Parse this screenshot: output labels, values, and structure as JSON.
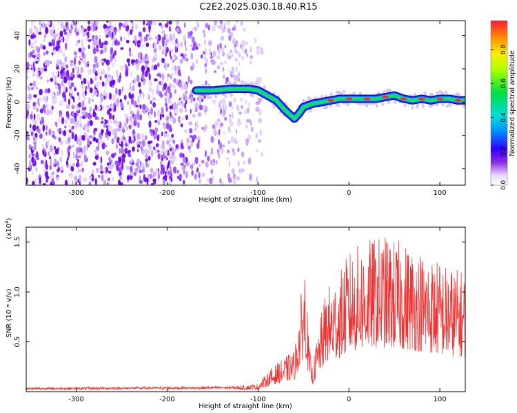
{
  "title": "C2E2.2025.030.18.40.R15",
  "chart_data": [
    {
      "type": "heatmap",
      "xlabel": "Height of straight line (km)",
      "ylabel": "Frequency (Hz)",
      "xlim": [
        -355,
        128
      ],
      "ylim": [
        -50,
        49
      ],
      "x_ticks": [
        -300,
        -200,
        -100,
        0,
        100
      ],
      "x_tick_labels": [
        "-300",
        "-200",
        "-100",
        "0",
        "100"
      ],
      "y_ticks": [
        -40,
        -20,
        0,
        20,
        40
      ],
      "y_tick_labels": [
        "-40",
        "-20",
        "0",
        "20",
        "40"
      ],
      "colorbar": {
        "label": "Normalized spectral amplitude",
        "range": [
          0,
          0.97
        ],
        "ticks": [
          0.0,
          0.2,
          0.4,
          0.6,
          0.8
        ],
        "tick_labels": [
          "0.0",
          "0.2",
          "0.4",
          "0.6",
          "0.8"
        ],
        "colormap": "white-violet-blue-cyan-green-yellow-red"
      },
      "ridge": {
        "x": [
          -168,
          -150,
          -130,
          -110,
          -100,
          -90,
          -80,
          -70,
          -60,
          -55,
          -50,
          -40,
          -30,
          -20,
          -10,
          0,
          10,
          20,
          30,
          40,
          50,
          60,
          70,
          80,
          90,
          100,
          110,
          120,
          128
        ],
        "y": [
          7,
          7,
          8,
          8,
          7,
          4,
          1,
          -5,
          -10,
          -7,
          -3,
          -1,
          0,
          1,
          2,
          2,
          2,
          2,
          2,
          3,
          4,
          2,
          1,
          2,
          1,
          2,
          2,
          1,
          1
        ],
        "peak_x": [
          -20,
          0,
          20,
          40,
          60,
          80,
          100,
          120
        ]
      },
      "noise_region_x": [
        -355,
        -95
      ]
    },
    {
      "type": "line",
      "xlabel": "Height of straight line (km)",
      "ylabel": "SNR (10 * v/v)",
      "y_multiplier_label": "(x10",
      "y_multiplier_exp": "4",
      "xlim": [
        -355,
        128
      ],
      "ylim": [
        0,
        16500
      ],
      "x_ticks": [
        -300,
        -200,
        -100,
        0,
        100
      ],
      "x_tick_labels": [
        "-300",
        "-200",
        "-100",
        "0",
        "100"
      ],
      "y_ticks": [
        5000,
        10000,
        15000
      ],
      "y_tick_labels": [
        "0.5",
        "1.0",
        "1.5"
      ],
      "color": "#ee3333",
      "envelope": {
        "x": [
          -355,
          -120,
          -100,
          -85,
          -70,
          -60,
          -52,
          -48,
          -44,
          -40,
          -35,
          -25,
          -10,
          0,
          20,
          40,
          60,
          80,
          100,
          115,
          128
        ],
        "y": [
          300,
          400,
          500,
          1500,
          2200,
          2600,
          6500,
          8500,
          3000,
          1500,
          3500,
          6500,
          7500,
          8800,
          9600,
          9800,
          9400,
          8900,
          8200,
          7800,
          7600
        ]
      }
    }
  ]
}
